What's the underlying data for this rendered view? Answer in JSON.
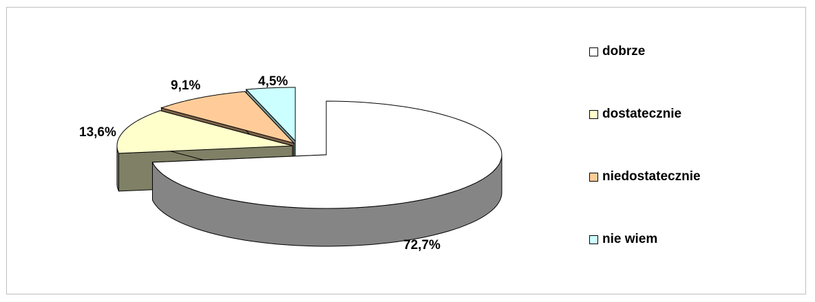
{
  "chart_data": {
    "type": "pie",
    "three_d": true,
    "exploded": true,
    "title": "",
    "slices": [
      {
        "label": "dobrze",
        "value": 72.7,
        "display": "72,7%",
        "color": "#ffffff"
      },
      {
        "label": "dostatecznie",
        "value": 13.6,
        "display": "13,6%",
        "color": "#ffffcc"
      },
      {
        "label": "niedostatecznie",
        "value": 9.1,
        "display": "9,1%",
        "color": "#ffcc99"
      },
      {
        "label": "nie wiem",
        "value": 4.5,
        "display": "4,5%",
        "color": "#ccffff"
      }
    ],
    "legend": "right"
  }
}
